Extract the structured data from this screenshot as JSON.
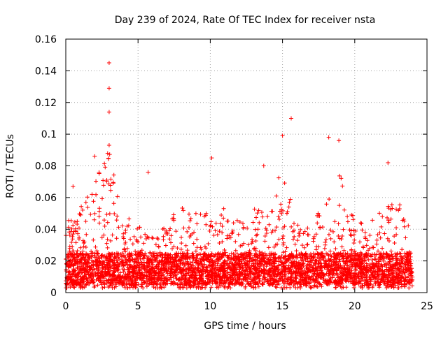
{
  "chart_data": {
    "type": "scatter",
    "title": "Day 239 of 2024, Rate Of TEC Index for receiver nsta",
    "xlabel": "GPS time / hours",
    "ylabel": "ROTI / TECUs",
    "xlim": [
      0,
      25
    ],
    "ylim": [
      0,
      0.16
    ],
    "x_ticks": [
      0,
      5,
      10,
      15,
      20,
      25
    ],
    "x_tick_labels": [
      "0",
      "5",
      "10",
      "15",
      "20",
      "25"
    ],
    "y_ticks": [
      0,
      0.02,
      0.04,
      0.06,
      0.08,
      0.1,
      0.12,
      0.14,
      0.16
    ],
    "y_tick_labels": [
      "0",
      "0.02",
      "0.04",
      "0.06",
      "0.08",
      "0.1",
      "0.12",
      "0.14",
      "0.16"
    ],
    "grid": true,
    "marker": "+",
    "color": "#ff0000",
    "series": [
      {
        "name": "ROTI",
        "x_range": [
          0,
          24
        ],
        "dense_band": [
          0.005,
          0.025
        ],
        "notable_points": [
          {
            "x": 3.0,
            "y": 0.145
          },
          {
            "x": 3.0,
            "y": 0.129
          },
          {
            "x": 3.0,
            "y": 0.114
          },
          {
            "x": 3.0,
            "y": 0.093
          },
          {
            "x": 2.0,
            "y": 0.086
          },
          {
            "x": 10.1,
            "y": 0.085
          },
          {
            "x": 15.0,
            "y": 0.099
          },
          {
            "x": 15.6,
            "y": 0.11
          },
          {
            "x": 18.2,
            "y": 0.098
          },
          {
            "x": 18.9,
            "y": 0.096
          },
          {
            "x": 22.3,
            "y": 0.082
          },
          {
            "x": 5.7,
            "y": 0.076
          },
          {
            "x": 13.7,
            "y": 0.08
          },
          {
            "x": 0.5,
            "y": 0.067
          }
        ],
        "envelope": [
          [
            0,
            0.045
          ],
          [
            1,
            0.055
          ],
          [
            2,
            0.07
          ],
          [
            3,
            0.09
          ],
          [
            4,
            0.05
          ],
          [
            5,
            0.045
          ],
          [
            6,
            0.035
          ],
          [
            7,
            0.045
          ],
          [
            8,
            0.055
          ],
          [
            9,
            0.05
          ],
          [
            10,
            0.05
          ],
          [
            11,
            0.055
          ],
          [
            12,
            0.05
          ],
          [
            13,
            0.06
          ],
          [
            14,
            0.05
          ],
          [
            15,
            0.085
          ],
          [
            16,
            0.045
          ],
          [
            17,
            0.04
          ],
          [
            18,
            0.065
          ],
          [
            19,
            0.075
          ],
          [
            20,
            0.045
          ],
          [
            21,
            0.045
          ],
          [
            22,
            0.055
          ],
          [
            23,
            0.06
          ],
          [
            24,
            0.04
          ]
        ]
      }
    ]
  }
}
